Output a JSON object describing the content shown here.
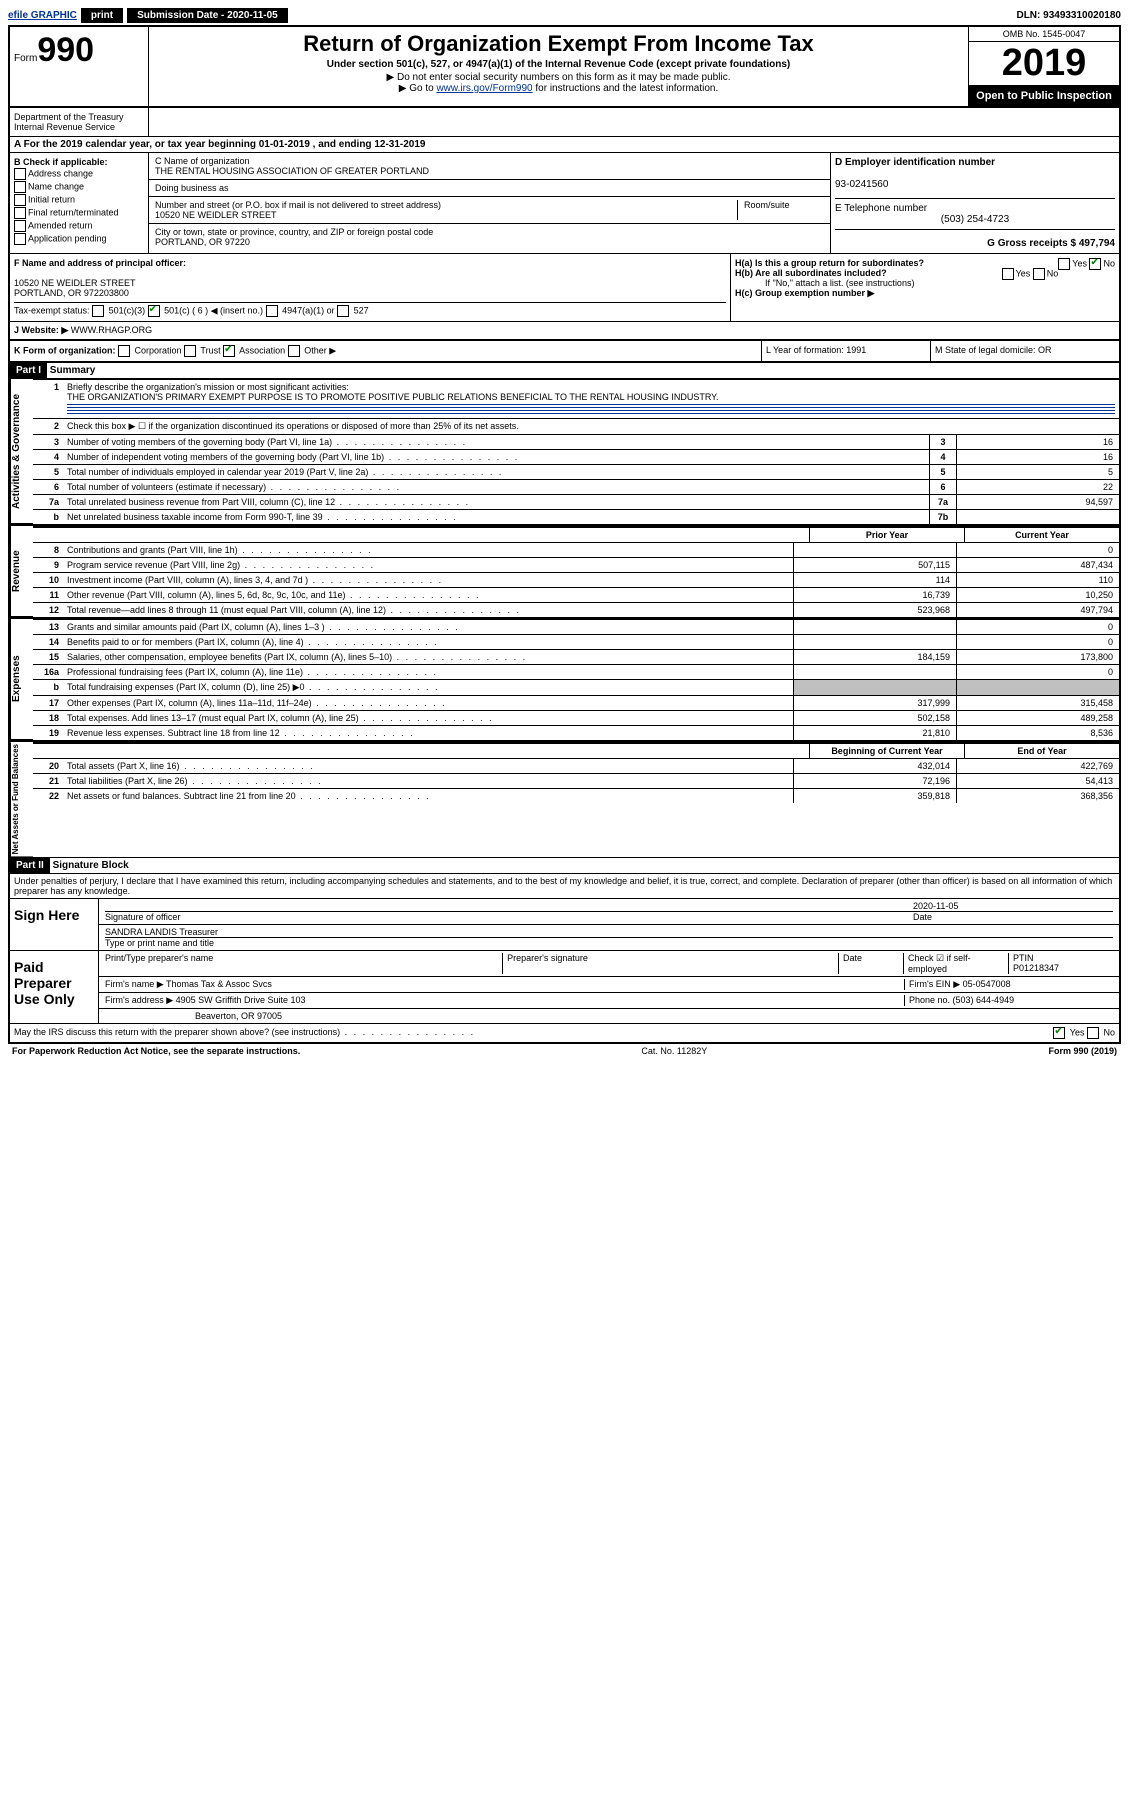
{
  "topbar": {
    "efile": "efile GRAPHIC",
    "print": "print",
    "subdate_label": "Submission Date - 2020-11-05",
    "dln": "DLN: 93493310020180"
  },
  "header": {
    "form": "Form",
    "num": "990",
    "title": "Return of Organization Exempt From Income Tax",
    "sub1": "Under section 501(c), 527, or 4947(a)(1) of the Internal Revenue Code (except private foundations)",
    "sub2": "▶ Do not enter social security numbers on this form as it may be made public.",
    "sub3": "▶ Go to ",
    "link": "www.irs.gov/Form990",
    "sub3b": " for instructions and the latest information.",
    "omb": "OMB No. 1545-0047",
    "year": "2019",
    "inspect": "Open to Public Inspection",
    "dept": "Department of the Treasury\nInternal Revenue Service"
  },
  "a": {
    "text": "A For the 2019 calendar year, or tax year beginning 01-01-2019   , and ending 12-31-2019"
  },
  "b": {
    "label": "B Check if applicable:",
    "items": [
      "Address change",
      "Name change",
      "Initial return",
      "Final return/terminated",
      "Amended return",
      "Application pending"
    ]
  },
  "c": {
    "name_label": "C Name of organization",
    "name": "THE RENTAL HOUSING ASSOCIATION OF GREATER PORTLAND",
    "dba": "Doing business as",
    "addr_label": "Number and street (or P.O. box if mail is not delivered to street address)",
    "room": "Room/suite",
    "addr": "10520 NE WEIDLER STREET",
    "city_label": "City or town, state or province, country, and ZIP or foreign postal code",
    "city": "PORTLAND, OR  97220"
  },
  "d": {
    "label": "D Employer identification number",
    "ein": "93-0241560"
  },
  "e": {
    "label": "E Telephone number",
    "phone": "(503) 254-4723"
  },
  "g": {
    "label": "G Gross receipts $ 497,794"
  },
  "f": {
    "label": "F Name and address of principal officer:",
    "addr": "10520 NE WEIDLER STREET\nPORTLAND, OR  972203800"
  },
  "h": {
    "a": "H(a)  Is this a group return for subordinates?",
    "b": "H(b)  Are all subordinates included?",
    "note": "If \"No,\" attach a list. (see instructions)",
    "c": "H(c)  Group exemption number ▶",
    "yes": "Yes",
    "no": "No"
  },
  "i": {
    "label": "Tax-exempt status:",
    "o1": "501(c)(3)",
    "o2": "501(c) ( 6 ) ◀ (insert no.)",
    "o3": "4947(a)(1) or",
    "o4": "527"
  },
  "j": {
    "label": "J Website: ▶",
    "val": "WWW.RHAGP.ORG"
  },
  "k": {
    "label": "K Form of organization:",
    "o1": "Corporation",
    "o2": "Trust",
    "o3": "Association",
    "o4": "Other ▶"
  },
  "l": {
    "label": "L Year of formation: 1991"
  },
  "m": {
    "label": "M State of legal domicile: OR"
  },
  "part1": {
    "label": "Part I",
    "title": "Summary"
  },
  "summary": {
    "q1": "Briefly describe the organization's mission or most significant activities:",
    "q1a": "THE ORGANIZATION'S PRIMARY EXEMPT PURPOSE IS TO PROMOTE POSITIVE PUBLIC RELATIONS BENEFICIAL TO THE RENTAL HOUSING INDUSTRY.",
    "q2": "Check this box ▶ ☐ if the organization discontinued its operations or disposed of more than 25% of its net assets.",
    "lines_ag": [
      {
        "n": "3",
        "d": "Number of voting members of the governing body (Part VI, line 1a)",
        "box": "3",
        "v": "16"
      },
      {
        "n": "4",
        "d": "Number of independent voting members of the governing body (Part VI, line 1b)",
        "box": "4",
        "v": "16"
      },
      {
        "n": "5",
        "d": "Total number of individuals employed in calendar year 2019 (Part V, line 2a)",
        "box": "5",
        "v": "5"
      },
      {
        "n": "6",
        "d": "Total number of volunteers (estimate if necessary)",
        "box": "6",
        "v": "22"
      },
      {
        "n": "7a",
        "d": "Total unrelated business revenue from Part VIII, column (C), line 12",
        "box": "7a",
        "v": "94,597"
      },
      {
        "n": "b",
        "d": "Net unrelated business taxable income from Form 990-T, line 39",
        "box": "7b",
        "v": ""
      }
    ],
    "hdr_prior": "Prior Year",
    "hdr_curr": "Current Year",
    "revenue": [
      {
        "n": "8",
        "d": "Contributions and grants (Part VIII, line 1h)",
        "p": "",
        "c": "0"
      },
      {
        "n": "9",
        "d": "Program service revenue (Part VIII, line 2g)",
        "p": "507,115",
        "c": "487,434"
      },
      {
        "n": "10",
        "d": "Investment income (Part VIII, column (A), lines 3, 4, and 7d )",
        "p": "114",
        "c": "110"
      },
      {
        "n": "11",
        "d": "Other revenue (Part VIII, column (A), lines 5, 6d, 8c, 9c, 10c, and 11e)",
        "p": "16,739",
        "c": "10,250"
      },
      {
        "n": "12",
        "d": "Total revenue—add lines 8 through 11 (must equal Part VIII, column (A), line 12)",
        "p": "523,968",
        "c": "497,794"
      }
    ],
    "expenses": [
      {
        "n": "13",
        "d": "Grants and similar amounts paid (Part IX, column (A), lines 1–3 )",
        "p": "",
        "c": "0"
      },
      {
        "n": "14",
        "d": "Benefits paid to or for members (Part IX, column (A), line 4)",
        "p": "",
        "c": "0"
      },
      {
        "n": "15",
        "d": "Salaries, other compensation, employee benefits (Part IX, column (A), lines 5–10)",
        "p": "184,159",
        "c": "173,800"
      },
      {
        "n": "16a",
        "d": "Professional fundraising fees (Part IX, column (A), line 11e)",
        "p": "",
        "c": "0"
      },
      {
        "n": "b",
        "d": "Total fundraising expenses (Part IX, column (D), line 25) ▶0",
        "p": "GRAY",
        "c": "GRAY"
      },
      {
        "n": "17",
        "d": "Other expenses (Part IX, column (A), lines 11a–11d, 11f–24e)",
        "p": "317,999",
        "c": "315,458"
      },
      {
        "n": "18",
        "d": "Total expenses. Add lines 13–17 (must equal Part IX, column (A), line 25)",
        "p": "502,158",
        "c": "489,258"
      },
      {
        "n": "19",
        "d": "Revenue less expenses. Subtract line 18 from line 12",
        "p": "21,810",
        "c": "8,536"
      }
    ],
    "hdr_beg": "Beginning of Current Year",
    "hdr_end": "End of Year",
    "net": [
      {
        "n": "20",
        "d": "Total assets (Part X, line 16)",
        "p": "432,014",
        "c": "422,769"
      },
      {
        "n": "21",
        "d": "Total liabilities (Part X, line 26)",
        "p": "72,196",
        "c": "54,413"
      },
      {
        "n": "22",
        "d": "Net assets or fund balances. Subtract line 21 from line 20",
        "p": "359,818",
        "c": "368,356"
      }
    ],
    "side1": "Activities & Governance",
    "side2": "Revenue",
    "side3": "Expenses",
    "side4": "Net Assets or Fund Balances"
  },
  "part2": {
    "label": "Part II",
    "title": "Signature Block",
    "decl": "Under penalties of perjury, I declare that I have examined this return, including accompanying schedules and statements, and to the best of my knowledge and belief, it is true, correct, and complete. Declaration of preparer (other than officer) is based on all information of which preparer has any knowledge."
  },
  "sign": {
    "here": "Sign Here",
    "sig": "Signature of officer",
    "date": "Date",
    "dateval": "2020-11-05",
    "name": "SANDRA LANDIS  Treasurer",
    "type": "Type or print name and title"
  },
  "paid": {
    "label": "Paid Preparer Use Only",
    "h1": "Print/Type preparer's name",
    "h2": "Preparer's signature",
    "h3": "Date",
    "h4": "Check ☑ if self-employed",
    "h5": "PTIN",
    "ptin": "P01218347",
    "firm": "Firm's name    ▶ Thomas Tax & Assoc Svcs",
    "ein": "Firm's EIN ▶ 05-0547008",
    "addr": "Firm's address ▶ 4905 SW Griffith Drive Suite 103",
    "phone": "Phone no. (503) 644-4949",
    "city": "Beaverton, OR  97005"
  },
  "irs": {
    "q": "May the IRS discuss this return with the preparer shown above? (see instructions)",
    "yes": "Yes",
    "no": "No"
  },
  "footer": {
    "l": "For Paperwork Reduction Act Notice, see the separate instructions.",
    "m": "Cat. No. 11282Y",
    "r": "Form 990 (2019)"
  }
}
